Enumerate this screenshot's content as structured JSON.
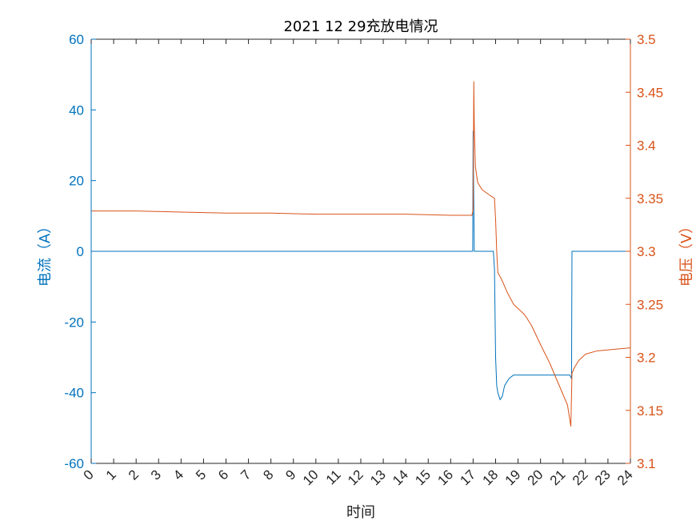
{
  "chart_data": {
    "type": "line",
    "title": "2021  12  29充放电情况",
    "xlabel": "时间",
    "ylabel_left": "电流（A）",
    "ylabel_right": "电压（V）",
    "xlim": [
      0,
      24
    ],
    "ylim_left": [
      -60,
      60
    ],
    "ylim_right": [
      3.1,
      3.5
    ],
    "x_ticks": [
      "0",
      "1",
      "2",
      "3",
      "4",
      "5",
      "6",
      "7",
      "8",
      "9",
      "10",
      "11",
      "12",
      "13",
      "14",
      "15",
      "16",
      "17",
      "18",
      "19",
      "20",
      "21",
      "22",
      "23",
      "24"
    ],
    "y_ticks_left": [
      "60",
      "40",
      "20",
      "0",
      "-20",
      "-40",
      "-60"
    ],
    "y_ticks_right": [
      "3.5",
      "3.45",
      "3.4",
      "3.35",
      "3.3",
      "3.25",
      "3.2",
      "3.15",
      "3.1"
    ],
    "grid": false,
    "legend": "none",
    "colors": {
      "current": "#0072BD",
      "voltage": "#D95319"
    },
    "series": [
      {
        "axis": "left",
        "color": "#0072BD",
        "x": [
          0,
          16.98,
          17.0,
          17.02,
          17.05,
          17.08,
          17.9,
          17.95,
          18.0,
          18.05,
          18.1,
          18.2,
          18.3,
          18.4,
          18.6,
          18.8,
          19.0,
          19.5,
          20.0,
          20.5,
          21.0,
          21.2,
          21.3,
          21.38,
          21.4,
          21.45,
          24
        ],
        "y": [
          0,
          0,
          34,
          20,
          0,
          0,
          0,
          -5,
          -30,
          -38,
          -40,
          -42,
          -41,
          -38,
          -36,
          -35,
          -35,
          -35,
          -35,
          -35,
          -35,
          -35,
          -35,
          -36,
          0,
          0,
          0
        ]
      },
      {
        "axis": "right",
        "color": "#D95319",
        "x": [
          0,
          2,
          4,
          6,
          8,
          10,
          12,
          14,
          16,
          16.95,
          17.0,
          17.03,
          17.05,
          17.1,
          17.2,
          17.4,
          17.6,
          17.8,
          17.95,
          18.0,
          18.05,
          18.1,
          18.3,
          18.5,
          18.8,
          19.0,
          19.3,
          19.6,
          20.0,
          20.4,
          20.8,
          21.0,
          21.2,
          21.35,
          21.4,
          21.5,
          21.7,
          22.0,
          22.5,
          23.0,
          23.5,
          24.0
        ],
        "y": [
          3.338,
          3.338,
          3.337,
          3.336,
          3.336,
          3.335,
          3.335,
          3.335,
          3.334,
          3.334,
          3.34,
          3.46,
          3.42,
          3.38,
          3.365,
          3.358,
          3.355,
          3.352,
          3.35,
          3.33,
          3.3,
          3.28,
          3.272,
          3.262,
          3.25,
          3.246,
          3.24,
          3.23,
          3.212,
          3.195,
          3.175,
          3.165,
          3.155,
          3.135,
          3.185,
          3.19,
          3.197,
          3.203,
          3.206,
          3.207,
          3.208,
          3.209
        ]
      }
    ]
  }
}
